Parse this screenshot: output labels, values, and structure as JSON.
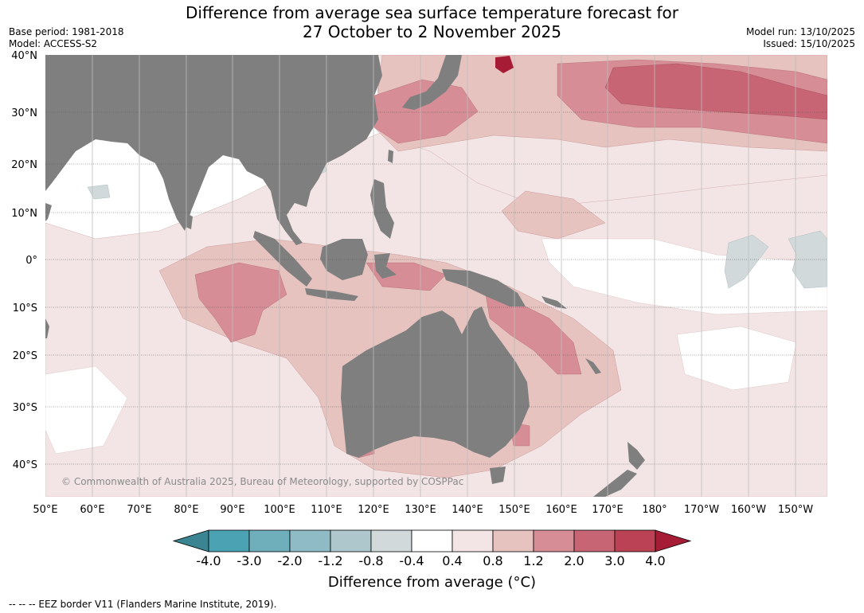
{
  "title": {
    "line1": "Difference from average sea surface temperature forecast for",
    "line2": "27 October to 2 November 2025"
  },
  "meta_left": {
    "base_period": "Base period: 1981-2018",
    "model": "Model: ACCESS-S2"
  },
  "meta_right": {
    "model_run": "Model run: 13/10/2025",
    "issued": "Issued: 15/10/2025"
  },
  "map": {
    "lat_labels": [
      "40°N",
      "30°N",
      "20°N",
      "10°N",
      "0°",
      "10°S",
      "20°S",
      "30°S",
      "40°S"
    ],
    "lon_labels": [
      "50°E",
      "60°E",
      "70°E",
      "80°E",
      "90°E",
      "100°E",
      "110°E",
      "120°E",
      "130°E",
      "140°E",
      "150°E",
      "160°E",
      "170°E",
      "180°",
      "170°W",
      "160°W",
      "150°W"
    ],
    "copyright": "© Commonwealth of Australia 2025, Bureau of Meteorology, supported by COSPPac",
    "colors": {
      "land": "#7f7f7f",
      "ocean": "#ffffff"
    }
  },
  "colorbar": {
    "ticks": [
      "-4.0",
      "-3.0",
      "-2.0",
      "-1.2",
      "-0.8",
      "-0.4",
      "0.4",
      "0.8",
      "1.2",
      "2.0",
      "3.0",
      "4.0"
    ],
    "colors": [
      "#3a8591",
      "#4aa2b2",
      "#6faebb",
      "#8ebbc5",
      "#adc7cc",
      "#d1d9da",
      "#ffffff",
      "#f3e5e5",
      "#e7c3c0",
      "#d68d95",
      "#c76574",
      "#bb4254",
      "#a61c35"
    ],
    "label": "Difference from average (°C)"
  },
  "footer": "--  --  -- EEZ border V11 (Flanders Marine Institute, 2019)."
}
